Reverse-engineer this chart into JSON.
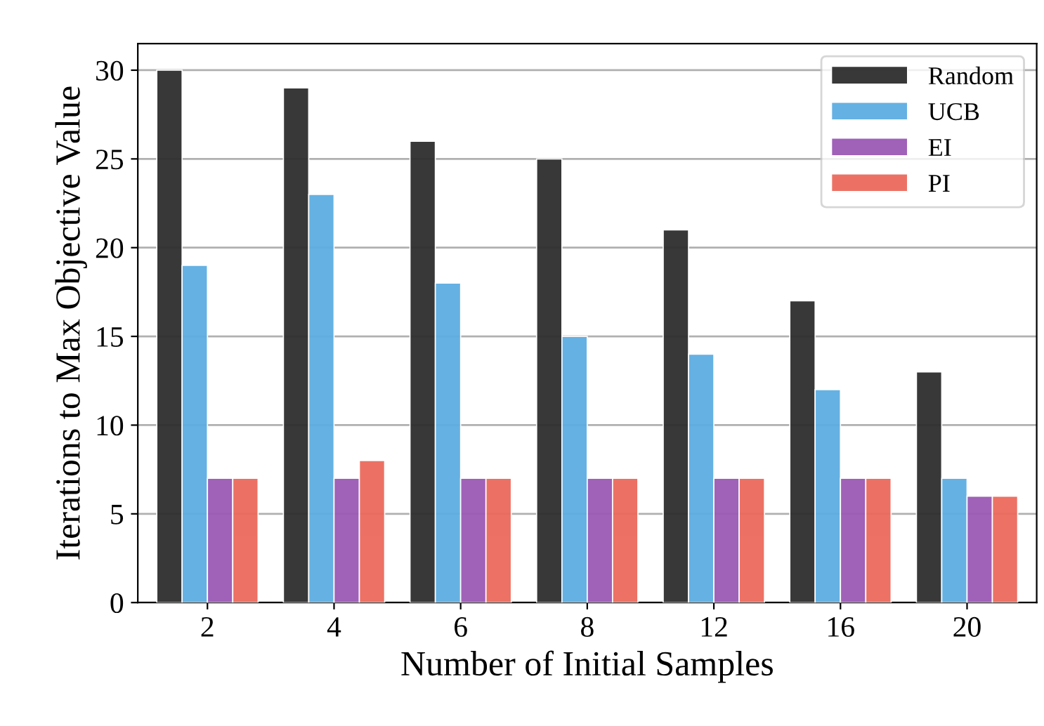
{
  "chart_data": {
    "type": "bar",
    "xlabel": "Number of Initial Samples",
    "ylabel": "Iterations to Max Objective Value",
    "categories": [
      "2",
      "4",
      "6",
      "8",
      "12",
      "16",
      "20"
    ],
    "series": [
      {
        "name": "Random",
        "color": "#2e2e2e",
        "values": [
          30,
          29,
          26,
          25,
          21,
          17,
          13
        ]
      },
      {
        "name": "UCB",
        "color": "#5dade2",
        "values": [
          19,
          23,
          18,
          15,
          14,
          12,
          7
        ]
      },
      {
        "name": "EI",
        "color": "#9b59b6",
        "values": [
          7,
          7,
          7,
          7,
          7,
          7,
          6
        ]
      },
      {
        "name": "PI",
        "color": "#ec6a5c",
        "values": [
          7,
          8,
          7,
          7,
          7,
          7,
          6
        ]
      }
    ],
    "ylim": [
      0,
      31.5
    ],
    "yticks": [
      0,
      5,
      10,
      15,
      20,
      25,
      30
    ],
    "grid": "y",
    "legend": "top right"
  }
}
